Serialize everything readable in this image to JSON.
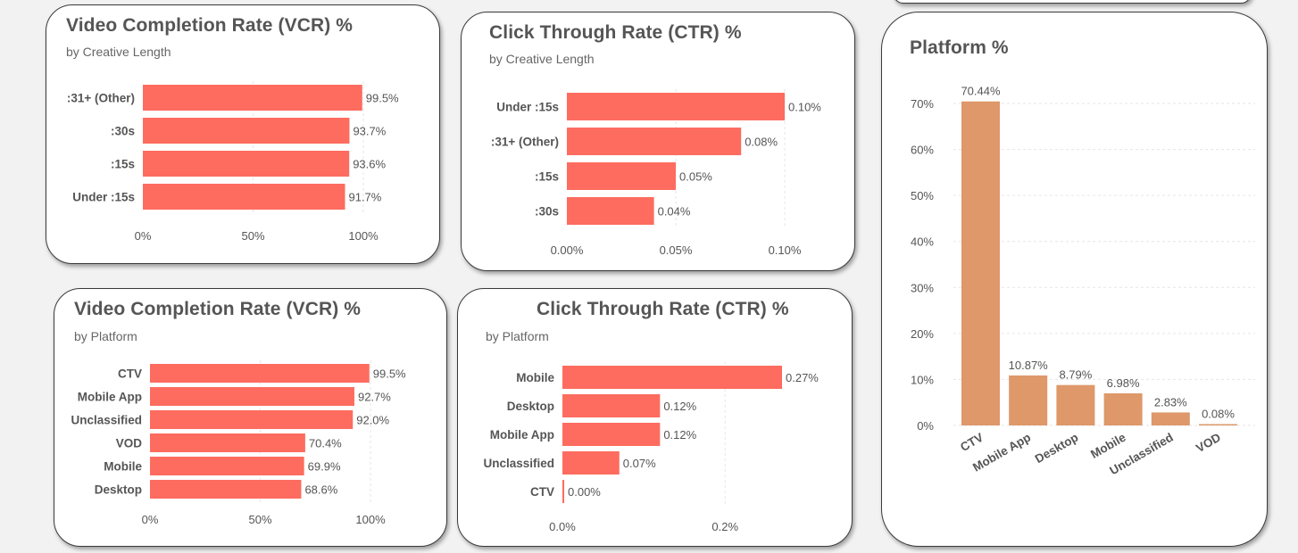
{
  "charts": {
    "vcr_length": {
      "title": "Video Completion Rate (VCR) %",
      "subtitle": "by Creative Length"
    },
    "ctr_length": {
      "title": "Click Through Rate (CTR) %",
      "subtitle": "by Creative Length"
    },
    "vcr_platform": {
      "title": "Video Completion Rate (VCR) %",
      "subtitle": "by Platform"
    },
    "ctr_platform": {
      "title": "Click Through Rate (CTR) %",
      "subtitle": "by Platform"
    },
    "platform_share": {
      "title": "Platform %"
    }
  },
  "colors": {
    "bar_red": "#fd6c5f",
    "bar_orange": "#de986a"
  },
  "chart_data": [
    {
      "id": "vcr_length",
      "type": "bar",
      "orientation": "horizontal",
      "title": "Video Completion Rate (VCR) %",
      "subtitle": "by Creative Length",
      "categories": [
        ":31+ (Other)",
        ":30s",
        ":15s",
        "Under :15s"
      ],
      "values": [
        99.5,
        93.7,
        93.6,
        91.7
      ],
      "labels": [
        "99.5%",
        "93.7%",
        "93.6%",
        "91.7%"
      ],
      "xlim": [
        0,
        100
      ],
      "ticks": [
        0,
        50,
        100
      ],
      "tick_labels": [
        "0%",
        "50%",
        "100%"
      ],
      "grid": true
    },
    {
      "id": "ctr_length",
      "type": "bar",
      "orientation": "horizontal",
      "title": "Click Through Rate (CTR) %",
      "subtitle": "by Creative Length",
      "categories": [
        "Under :15s",
        ":31+ (Other)",
        ":15s",
        ":30s"
      ],
      "values": [
        0.1,
        0.08,
        0.05,
        0.04
      ],
      "labels": [
        "0.10%",
        "0.08%",
        "0.05%",
        "0.04%"
      ],
      "xlim": [
        0,
        0.1
      ],
      "ticks": [
        0,
        0.05,
        0.1
      ],
      "tick_labels": [
        "0.00%",
        "0.05%",
        "0.10%"
      ],
      "grid": true
    },
    {
      "id": "vcr_platform",
      "type": "bar",
      "orientation": "horizontal",
      "title": "Video Completion Rate (VCR) %",
      "subtitle": "by Platform",
      "categories": [
        "CTV",
        "Mobile App",
        "Unclassified",
        "VOD",
        "Mobile",
        "Desktop"
      ],
      "values": [
        99.5,
        92.7,
        92.0,
        70.4,
        69.9,
        68.6
      ],
      "labels": [
        "99.5%",
        "92.7%",
        "92.0%",
        "70.4%",
        "69.9%",
        "68.6%"
      ],
      "xlim": [
        0,
        100
      ],
      "ticks": [
        0,
        50,
        100
      ],
      "tick_labels": [
        "0%",
        "50%",
        "100%"
      ],
      "grid": true
    },
    {
      "id": "ctr_platform",
      "type": "bar",
      "orientation": "horizontal",
      "title": "Click Through Rate (CTR) %",
      "subtitle": "by Platform",
      "categories": [
        "Mobile",
        "Desktop",
        "Mobile App",
        "Unclassified",
        "CTV"
      ],
      "values": [
        0.27,
        0.12,
        0.12,
        0.07,
        0.0
      ],
      "labels": [
        "0.27%",
        "0.12%",
        "0.12%",
        "0.07%",
        "0.00%"
      ],
      "xlim": [
        0,
        0.27
      ],
      "ticks": [
        0,
        0.2
      ],
      "tick_labels": [
        "0.0%",
        "0.2%"
      ],
      "grid": true
    },
    {
      "id": "platform_share",
      "type": "bar",
      "orientation": "vertical",
      "title": "Platform %",
      "categories": [
        "CTV",
        "Mobile App",
        "Desktop",
        "Mobile",
        "Unclassified",
        "VOD"
      ],
      "values": [
        70.44,
        10.87,
        8.79,
        6.98,
        2.83,
        0.08
      ],
      "labels": [
        "70.44%",
        "10.87%",
        "8.79%",
        "6.98%",
        "2.83%",
        "0.08%"
      ],
      "ylim": [
        0,
        70
      ],
      "ticks": [
        0,
        10,
        20,
        30,
        40,
        50,
        60,
        70
      ],
      "tick_labels": [
        "0%",
        "10%",
        "20%",
        "30%",
        "40%",
        "50%",
        "60%",
        "70%"
      ],
      "grid": true
    }
  ]
}
